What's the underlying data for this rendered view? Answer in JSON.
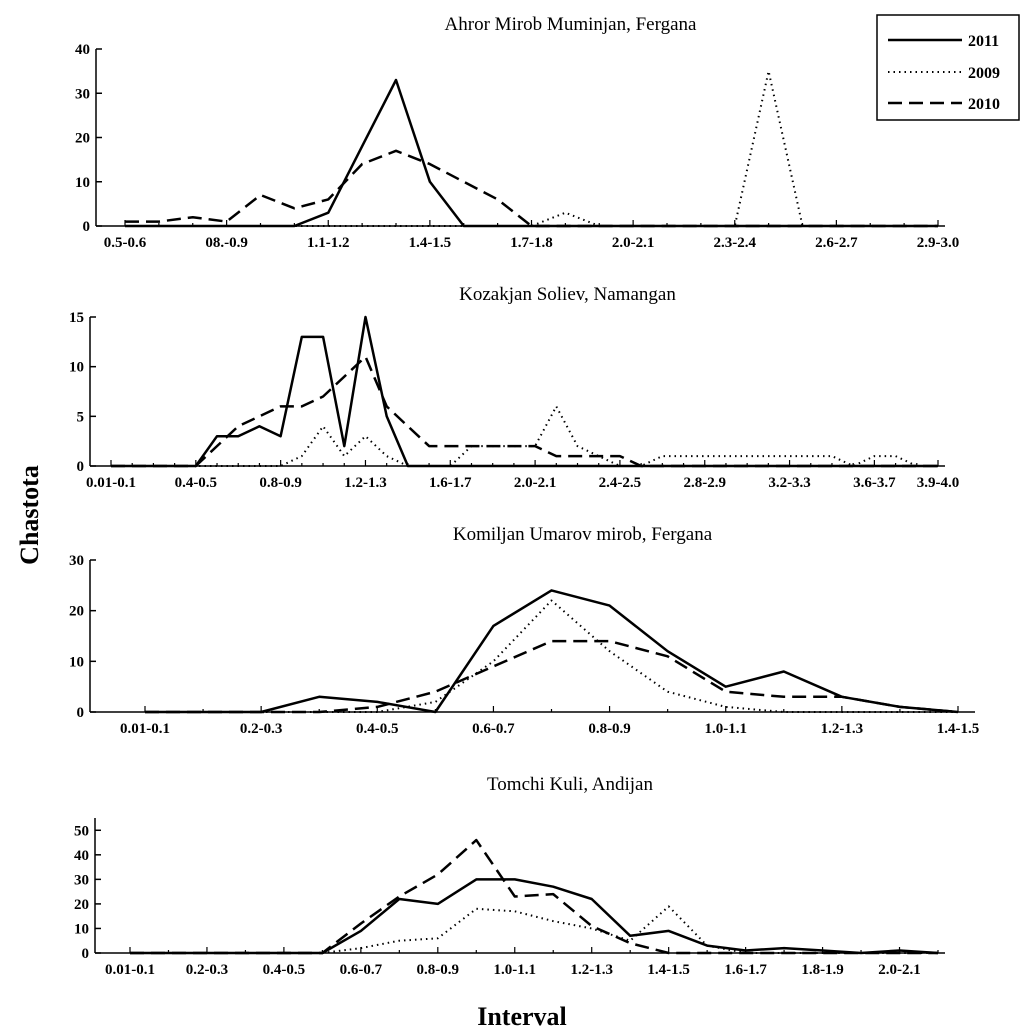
{
  "figure": {
    "ylabel": "Chastota",
    "xlabel": "Interval"
  },
  "legend": {
    "placement": "top-right",
    "items": [
      {
        "label": "2011",
        "style": "solid"
      },
      {
        "label": "2009",
        "style": "dotted"
      },
      {
        "label": "2010",
        "style": "dashed"
      }
    ]
  },
  "chart_data": [
    {
      "type": "line",
      "title": "Ahror Mirob Muminjan, Fergana",
      "xlabel": "Interval",
      "ylabel": "Chastota",
      "ylim": [
        0,
        40
      ],
      "yticks": [
        0,
        10,
        20,
        30,
        40
      ],
      "categories": [
        "0.5-0.6",
        "0.6-0.7",
        "0.7-0.8",
        "08.-0.9",
        "0.9-1.0",
        "1.0-1.1",
        "1.1-1.2",
        "1.2-1.3",
        "1.3-1.4",
        "1.4-1.5",
        "1.5-1.6",
        "1.6-1.7",
        "1.7-1.8",
        "1.8-1.9",
        "1.9-2.0",
        "2.0-2.1",
        "2.1-2.2",
        "2.2-2.3",
        "2.3-2.4",
        "2.4-2.5",
        "2.5-2.6",
        "2.6-2.7",
        "2.7-2.8",
        "2.8-2.9",
        "2.9-3.0"
      ],
      "tick_labels": [
        "0.5-0.6",
        "",
        "",
        "08.-0.9",
        "",
        "",
        "1.1-1.2",
        "",
        "",
        "1.4-1.5",
        "",
        "",
        "1.7-1.8",
        "",
        "",
        "2.0-2.1",
        "",
        "",
        "2.3-2.4",
        "",
        "",
        "2.6-2.7",
        "",
        "",
        "2.9-3.0"
      ],
      "series": [
        {
          "name": "2011",
          "style": "solid",
          "values": [
            0,
            0,
            0,
            0,
            0,
            0,
            3,
            18,
            33,
            10,
            0,
            0,
            0,
            0,
            0,
            0,
            0,
            0,
            0,
            0,
            0,
            0,
            0,
            0,
            0
          ]
        },
        {
          "name": "2009",
          "style": "dotted",
          "values": [
            0,
            0,
            0,
            0,
            0,
            0,
            0,
            0,
            0,
            0,
            0,
            0,
            0,
            3,
            0,
            0,
            0,
            0,
            0,
            35,
            0,
            0,
            0,
            0,
            0
          ]
        },
        {
          "name": "2010",
          "style": "dashed",
          "values": [
            1,
            1,
            2,
            1,
            7,
            4,
            6,
            14,
            17,
            14,
            10,
            6,
            0,
            0,
            0,
            0,
            0,
            0,
            0,
            0,
            0,
            0,
            0,
            0,
            0
          ]
        }
      ]
    },
    {
      "type": "line",
      "title": "Kozakjan Soliev, Namangan",
      "xlabel": "Interval",
      "ylabel": "Chastota",
      "ylim": [
        0,
        15
      ],
      "yticks": [
        0,
        5,
        10,
        15
      ],
      "categories": [
        "0.01-0.1",
        "0.1-0.2",
        "0.2-0.3",
        "0.3-0.4",
        "0.4-0.5",
        "0.5-0.6",
        "0.6-0.7",
        "0.7-0.8",
        "0.8-0.9",
        "0.9-1.0",
        "1.0-1.1",
        "1.1-1.2",
        "1.2-1.3",
        "1.3-1.4",
        "1.4-1.5",
        "1.5-1.6",
        "1.6-1.7",
        "1.7-1.8",
        "1.8-1.9",
        "1.9-2.0",
        "2.0-2.1",
        "2.1-2.2",
        "2.2-2.3",
        "2.3-2.4",
        "2.4-2.5",
        "2.5-2.6",
        "2.6-2.7",
        "2.7-2.8",
        "2.8-2.9",
        "2.9-3.0",
        "3.0-3.1",
        "3.1-3.2",
        "3.2-3.3",
        "3.3-3.4",
        "3.4-3.5",
        "3.5-3.6",
        "3.6-3.7",
        "3.7-3.8",
        "3.8-3.9",
        "3.9-4.0"
      ],
      "tick_labels": [
        "0.01-0.1",
        "",
        "",
        "",
        "0.4-0.5",
        "",
        "",
        "",
        "0.8-0.9",
        "",
        "",
        "",
        "1.2-1.3",
        "",
        "",
        "",
        "1.6-1.7",
        "",
        "",
        "",
        "2.0-2.1",
        "",
        "",
        "",
        "2.4-2.5",
        "",
        "",
        "",
        "2.8-2.9",
        "",
        "",
        "",
        "3.2-3.3",
        "",
        "",
        "",
        "3.6-3.7",
        "",
        "",
        "3.9-4.0"
      ],
      "series": [
        {
          "name": "2011",
          "style": "solid",
          "values": [
            0,
            0,
            0,
            0,
            0,
            3,
            3,
            4,
            3,
            13,
            13,
            2,
            15,
            5,
            0,
            0,
            0,
            0,
            0,
            0,
            0,
            0,
            0,
            0,
            0,
            0,
            0,
            0,
            0,
            0,
            0,
            0,
            0,
            0,
            0,
            0,
            0,
            0,
            0,
            0
          ]
        },
        {
          "name": "2009",
          "style": "dotted",
          "values": [
            0,
            0,
            0,
            0,
            0,
            0,
            0,
            0,
            0,
            1,
            4,
            1,
            3,
            1,
            0,
            0,
            0,
            2,
            2,
            2,
            2,
            6,
            2,
            1,
            0,
            0,
            1,
            1,
            1,
            1,
            1,
            1,
            1,
            1,
            1,
            0,
            1,
            1,
            0,
            0
          ]
        },
        {
          "name": "2010",
          "style": "dashed",
          "values": [
            0,
            0,
            0,
            0,
            0,
            2,
            4,
            5,
            6,
            6,
            7,
            9,
            11,
            6,
            4,
            2,
            2,
            2,
            2,
            2,
            2,
            1,
            1,
            1,
            1,
            0,
            0,
            0,
            0,
            0,
            0,
            0,
            0,
            0,
            0,
            0,
            0,
            0,
            0,
            0
          ]
        }
      ]
    },
    {
      "type": "line",
      "title": "Komiljan Umarov mirob, Fergana",
      "xlabel": "Interval",
      "ylabel": "Chastota",
      "ylim": [
        0,
        30
      ],
      "yticks": [
        0,
        10,
        20,
        30
      ],
      "categories": [
        "0.01-0.1",
        "0.1-0.2",
        "0.2-0.3",
        "0.3-0.4",
        "0.4-0.5",
        "0.5-0.6",
        "0.6-0.7",
        "0.7-0.8",
        "0.8-0.9",
        "0.9-1.0",
        "1.0-1.1",
        "1.1-1.2",
        "1.2-1.3",
        "1.3-1.4",
        "1.4-1.5"
      ],
      "tick_labels": [
        "0.01-0.1",
        "",
        "0.2-0.3",
        "",
        "0.4-0.5",
        "",
        "0.6-0.7",
        "",
        "0.8-0.9",
        "",
        "1.0-1.1",
        "",
        "1.2-1.3",
        "",
        "1.4-1.5"
      ],
      "series": [
        {
          "name": "2011",
          "style": "solid",
          "values": [
            0,
            0,
            0,
            3,
            2,
            0,
            17,
            24,
            21,
            12,
            5,
            8,
            3,
            1,
            0
          ]
        },
        {
          "name": "2009",
          "style": "dotted",
          "values": [
            0,
            0,
            0,
            0,
            0,
            2,
            10,
            22,
            12,
            4,
            1,
            0,
            0,
            0,
            0
          ]
        },
        {
          "name": "2010",
          "style": "dashed",
          "values": [
            0,
            0,
            0,
            0,
            1,
            4,
            9,
            14,
            14,
            11,
            4,
            3,
            3,
            1,
            0
          ]
        }
      ]
    },
    {
      "type": "line",
      "title": "Tomchi Kuli, Andijan",
      "xlabel": "Interval",
      "ylabel": "Chastota",
      "ylim": [
        0,
        55
      ],
      "yticks": [
        0,
        10,
        20,
        30,
        40,
        50
      ],
      "categories": [
        "0.01-0.1",
        "0.1-0.2",
        "0.2-0.3",
        "0.3-0.4",
        "0.4-0.5",
        "0.5-0.6",
        "0.6-0.7",
        "0.7-0.8",
        "0.8-0.9",
        "0.9-1.0",
        "1.0-1.1",
        "1.1-1.2",
        "1.2-1.3",
        "1.3-1.4",
        "1.4-1.5",
        "1.5-1.6",
        "1.6-1.7",
        "1.7-1.8",
        "1.8-1.9",
        "1.9-2.0",
        "2.0-2.1",
        "2.1-2.2"
      ],
      "tick_labels": [
        "0.01-0.1",
        "",
        "0.2-0.3",
        "",
        "0.4-0.5",
        "",
        "0.6-0.7",
        "",
        "0.8-0.9",
        "",
        "1.0-1.1",
        "",
        "1.2-1.3",
        "",
        "1.4-1.5",
        "",
        "1.6-1.7",
        "",
        "1.8-1.9",
        "",
        "2.0-2.1",
        ""
      ],
      "series": [
        {
          "name": "2011",
          "style": "solid",
          "values": [
            0,
            0,
            0,
            0,
            0,
            0,
            9,
            22,
            20,
            30,
            30,
            27,
            22,
            7,
            9,
            3,
            1,
            2,
            1,
            0,
            1,
            0
          ]
        },
        {
          "name": "2009",
          "style": "dotted",
          "values": [
            0,
            0,
            0,
            0,
            0,
            0,
            2,
            5,
            6,
            18,
            17,
            13,
            10,
            5,
            19,
            3,
            0,
            0,
            0,
            0,
            0,
            0
          ]
        },
        {
          "name": "2010",
          "style": "dashed",
          "values": [
            0,
            0,
            0,
            0,
            0,
            0,
            12,
            23,
            32,
            46,
            23,
            24,
            11,
            4,
            0,
            0,
            0,
            0,
            0,
            0,
            0,
            0
          ]
        }
      ]
    }
  ]
}
